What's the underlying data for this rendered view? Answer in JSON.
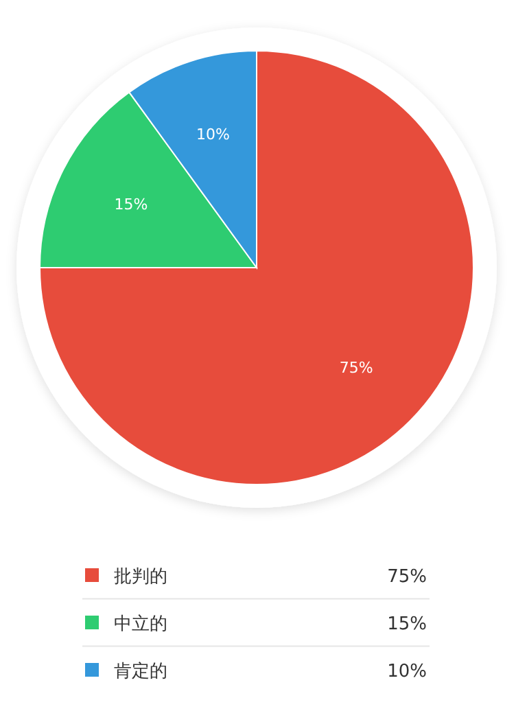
{
  "chart_data": {
    "type": "pie",
    "categories": [
      "批判的",
      "中立的",
      "肯定的"
    ],
    "values": [
      75,
      15,
      10
    ],
    "colors": [
      "#e74c3c",
      "#2ecc71",
      "#3498db"
    ],
    "value_labels": [
      "75%",
      "15%",
      "10%"
    ],
    "legend": "bottom"
  }
}
